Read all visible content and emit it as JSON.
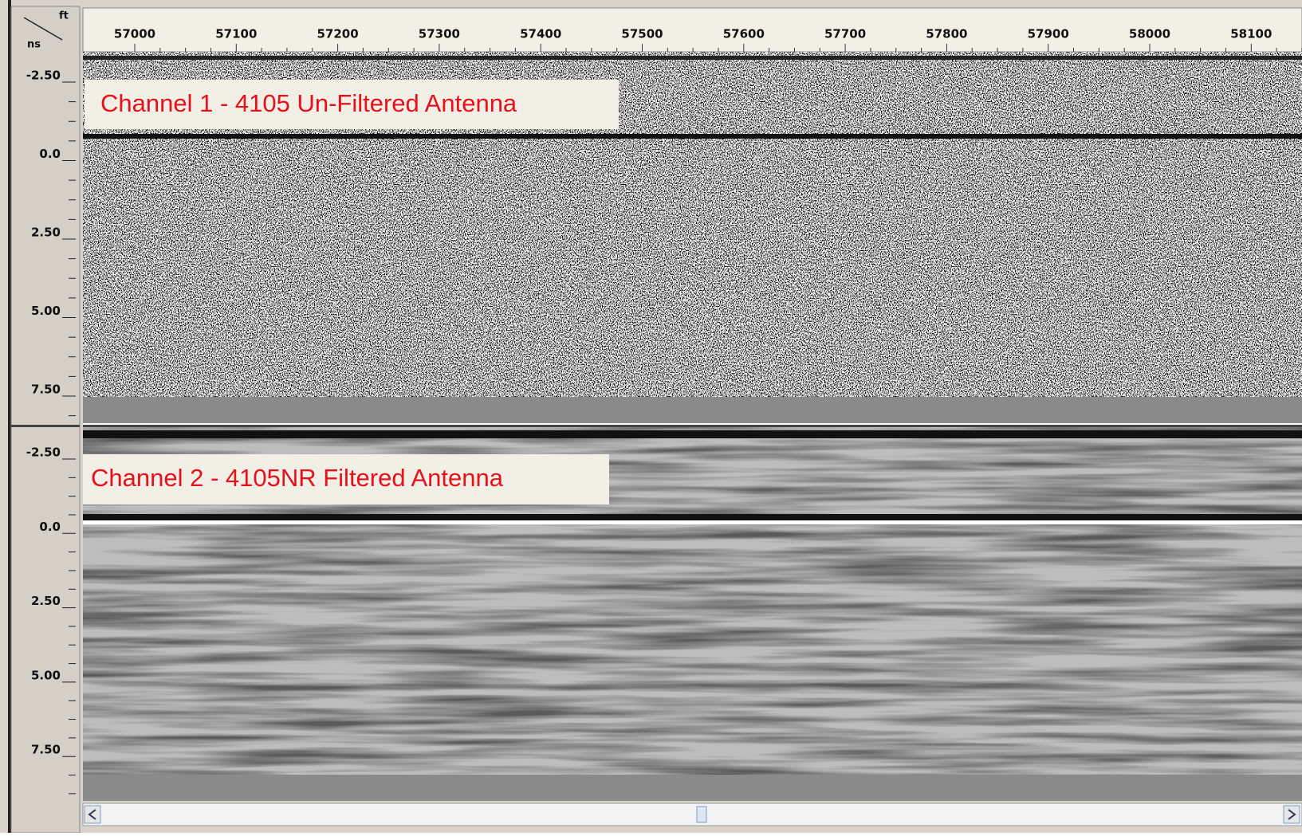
{
  "ruler": {
    "unit_x": "ft",
    "unit_y": "ns",
    "ticks": [
      "57000",
      "57100",
      "57200",
      "57300",
      "57400",
      "57500",
      "57600",
      "57700",
      "57800",
      "57900",
      "58000",
      "58100"
    ]
  },
  "channels": [
    {
      "label": "Channel 1  - 4105 Un-Filtered Antenna",
      "depth_ticks": [
        "-2.50",
        "0.0",
        "2.50",
        "5.00",
        "7.50"
      ]
    },
    {
      "label": "Channel 2  - 4105NR Filtered Antenna",
      "depth_ticks": [
        "-2.50",
        "0.0",
        "2.50",
        "5.00",
        "7.50"
      ]
    }
  ]
}
